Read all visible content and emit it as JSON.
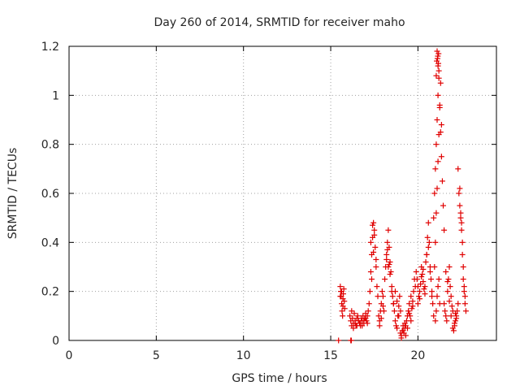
{
  "chart_data": {
    "type": "scatter",
    "title": "Day 260 of 2014, SRMTID for receiver maho",
    "xlabel": "GPS time / hours",
    "ylabel": "SRMTID / TECUs",
    "xlim": [
      0,
      24.5
    ],
    "ylim": [
      0,
      1.2
    ],
    "x_ticks": [
      0,
      5,
      10,
      15,
      20
    ],
    "x_tick_labels": [
      "0",
      "5",
      "10",
      "15",
      "20"
    ],
    "y_ticks": [
      0,
      0.2,
      0.4,
      0.6,
      0.8,
      1.0,
      1.2
    ],
    "y_tick_labels": [
      "0",
      "0.2",
      "0.4",
      "0.6",
      "0.8",
      "1",
      "1.2"
    ],
    "grid": true,
    "marker": "plus",
    "series_color": "#e00000",
    "series": [
      {
        "name": "SRMTID",
        "x": [
          15.55,
          15.58,
          15.6,
          15.63,
          15.65,
          15.68,
          15.7,
          15.72,
          15.75,
          15.78,
          15.8,
          15.55,
          15.62,
          15.7,
          16.1,
          16.15,
          16.2,
          16.25,
          16.3,
          16.35,
          16.4,
          16.45,
          16.5,
          16.55,
          16.6,
          16.65,
          16.7,
          16.75,
          16.8,
          16.85,
          16.9,
          16.95,
          17.0,
          17.05,
          17.1,
          17.15,
          16.2,
          16.3,
          16.4,
          16.5,
          16.6,
          16.7,
          16.8,
          16.9,
          17.0,
          17.1,
          17.2,
          17.25,
          17.3,
          17.35,
          17.4,
          17.45,
          17.5,
          17.55,
          17.6,
          17.65,
          17.7,
          17.3,
          17.4,
          17.5,
          17.6,
          17.35,
          17.45,
          17.75,
          17.8,
          17.85,
          17.9,
          17.95,
          18.0,
          18.05,
          17.8,
          17.9,
          18.0,
          18.1,
          18.15,
          18.2,
          18.25,
          18.3,
          18.35,
          18.4,
          18.45,
          18.5,
          18.55,
          18.6,
          18.2,
          18.3,
          18.4,
          18.5,
          18.25,
          18.35,
          18.6,
          18.65,
          18.7,
          18.75,
          18.8,
          18.85,
          18.9,
          18.95,
          19.0,
          18.7,
          18.8,
          18.9,
          19.0,
          19.05,
          19.1,
          19.15,
          19.2,
          19.25,
          19.3,
          19.05,
          19.15,
          19.25,
          19.3,
          19.35,
          19.4,
          19.45,
          19.5,
          19.55,
          19.6,
          19.65,
          19.7,
          19.75,
          19.8,
          19.85,
          19.4,
          19.5,
          19.6,
          19.7,
          19.9,
          19.95,
          20.0,
          20.05,
          20.1,
          20.15,
          20.2,
          20.25,
          20.3,
          20.35,
          20.4,
          20.45,
          20.5,
          20.0,
          20.1,
          20.2,
          20.3,
          20.4,
          20.5,
          20.55,
          20.6,
          20.65,
          20.7,
          20.75,
          20.8,
          20.85,
          20.9,
          20.6,
          20.7,
          20.8,
          20.9,
          20.95,
          21.0,
          21.05,
          21.1,
          21.15,
          21.2,
          21.25,
          21.3,
          21.35,
          21.4,
          21.45,
          21.5,
          20.95,
          21.0,
          21.05,
          21.1,
          21.15,
          21.2,
          21.25,
          21.3,
          21.35,
          21.0,
          21.05,
          21.1,
          21.15,
          21.2,
          21.25,
          21.1,
          21.12,
          21.15,
          21.18,
          21.2,
          21.05,
          21.08,
          21.14,
          21.17,
          21.5,
          21.55,
          21.6,
          21.65,
          21.7,
          21.75,
          21.8,
          21.85,
          21.9,
          21.95,
          22.0,
          21.6,
          21.7,
          21.8,
          21.9,
          22.0,
          22.05,
          22.1,
          22.15,
          22.2,
          22.25,
          22.3,
          22.1,
          22.2,
          22.15,
          22.3,
          22.35,
          22.4,
          22.45,
          22.5,
          22.55,
          22.6,
          22.65,
          22.7,
          22.75,
          22.4,
          22.5,
          22.6,
          22.7,
          22.45,
          22.55,
          22.65,
          15.45,
          16.15,
          16.18
        ],
        "y": [
          0.22,
          0.2,
          0.18,
          0.15,
          0.12,
          0.1,
          0.17,
          0.19,
          0.21,
          0.16,
          0.13,
          0.18,
          0.2,
          0.14,
          0.1,
          0.08,
          0.12,
          0.09,
          0.07,
          0.11,
          0.08,
          0.06,
          0.09,
          0.1,
          0.08,
          0.07,
          0.06,
          0.09,
          0.08,
          0.1,
          0.07,
          0.09,
          0.11,
          0.08,
          0.1,
          0.12,
          0.06,
          0.05,
          0.07,
          0.06,
          0.08,
          0.07,
          0.06,
          0.08,
          0.09,
          0.07,
          0.15,
          0.2,
          0.28,
          0.35,
          0.42,
          0.48,
          0.45,
          0.38,
          0.3,
          0.22,
          0.18,
          0.4,
          0.47,
          0.43,
          0.33,
          0.25,
          0.36,
          0.1,
          0.08,
          0.12,
          0.15,
          0.2,
          0.18,
          0.12,
          0.06,
          0.09,
          0.14,
          0.25,
          0.3,
          0.35,
          0.4,
          0.45,
          0.38,
          0.32,
          0.28,
          0.22,
          0.18,
          0.15,
          0.33,
          0.3,
          0.27,
          0.2,
          0.37,
          0.31,
          0.15,
          0.12,
          0.08,
          0.06,
          0.05,
          0.1,
          0.14,
          0.18,
          0.12,
          0.2,
          0.16,
          0.1,
          0.03,
          0.02,
          0.04,
          0.06,
          0.03,
          0.05,
          0.02,
          0.01,
          0.04,
          0.07,
          0.06,
          0.08,
          0.1,
          0.12,
          0.15,
          0.1,
          0.08,
          0.13,
          0.16,
          0.2,
          0.25,
          0.22,
          0.05,
          0.11,
          0.18,
          0.14,
          0.28,
          0.25,
          0.22,
          0.18,
          0.2,
          0.23,
          0.3,
          0.27,
          0.24,
          0.21,
          0.19,
          0.32,
          0.35,
          0.15,
          0.17,
          0.26,
          0.29,
          0.22,
          0.35,
          0.42,
          0.48,
          0.4,
          0.3,
          0.25,
          0.2,
          0.15,
          0.1,
          0.38,
          0.28,
          0.18,
          0.5,
          0.6,
          0.7,
          0.8,
          0.9,
          1.0,
          1.07,
          0.95,
          0.85,
          0.75,
          0.65,
          0.55,
          0.45,
          0.3,
          0.4,
          0.52,
          0.62,
          0.73,
          0.84,
          0.96,
          1.05,
          0.88,
          0.08,
          0.12,
          0.18,
          0.22,
          0.25,
          0.15,
          1.18,
          1.15,
          1.12,
          1.17,
          1.1,
          1.08,
          1.14,
          1.16,
          1.13,
          0.15,
          0.12,
          0.1,
          0.08,
          0.2,
          0.25,
          0.3,
          0.22,
          0.18,
          0.14,
          0.12,
          0.28,
          0.24,
          0.16,
          0.1,
          0.05,
          0.04,
          0.06,
          0.08,
          0.1,
          0.12,
          0.15,
          0.07,
          0.09,
          0.11,
          0.7,
          0.6,
          0.55,
          0.5,
          0.45,
          0.35,
          0.25,
          0.2,
          0.15,
          0.12,
          0.62,
          0.48,
          0.3,
          0.18,
          0.52,
          0.4,
          0.22,
          0.0,
          0.0,
          0.0
        ]
      }
    ]
  }
}
